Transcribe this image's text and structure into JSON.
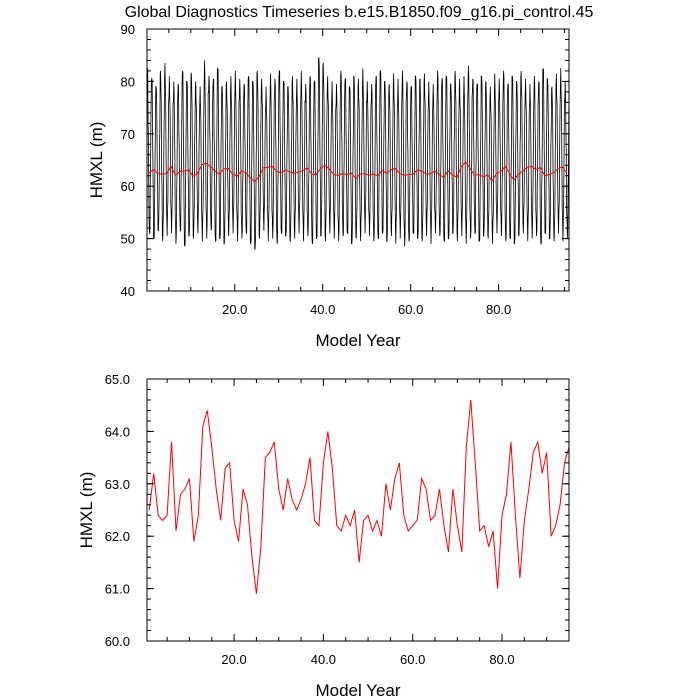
{
  "chart_data": [
    {
      "type": "line",
      "title": "Global Diagnostics Timeseries b.e15.B1850.f09_g16.pi_control.45",
      "xlabel": "Model Year",
      "ylabel": "HMXL (m)",
      "xlim": [
        0.04,
        96
      ],
      "ylim": [
        40,
        90
      ],
      "x_ticks": [
        20,
        40,
        60,
        80
      ],
      "x_tick_labels": [
        "20.0",
        "40.0",
        "60.0",
        "80.0"
      ],
      "y_ticks": [
        40,
        50,
        60,
        70,
        80,
        90
      ],
      "y_tick_labels": [
        "40",
        "50",
        "60",
        "70",
        "80",
        "90"
      ],
      "grid": false,
      "series": [
        {
          "color": "#000000",
          "style": "monthly",
          "annual_max": [
            82.5,
            80.5,
            79.0,
            82.0,
            83.5,
            81.0,
            80.0,
            79.5,
            82.0,
            80.0,
            81.5,
            80.0,
            79.0,
            84.0,
            81.0,
            80.5,
            82.5,
            79.0,
            80.0,
            81.0,
            82.0,
            80.5,
            79.5,
            81.0,
            80.0,
            82.0,
            80.5,
            79.0,
            81.5,
            80.5,
            82.0,
            80.0,
            79.0,
            81.0,
            80.5,
            82.0,
            79.5,
            81.0,
            80.0,
            84.5,
            83.5,
            81.0,
            80.0,
            79.5,
            82.0,
            80.5,
            79.0,
            81.0,
            80.5,
            82.5,
            80.0,
            79.5,
            81.0,
            82.0,
            80.0,
            79.5,
            81.5,
            80.5,
            82.0,
            80.0,
            79.0,
            81.0,
            80.5,
            81.5,
            80.0,
            79.5,
            82.0,
            80.5,
            81.0,
            79.5,
            82.0,
            80.5,
            81.0,
            83.0,
            80.5,
            79.5,
            81.0,
            80.0,
            79.0,
            81.5,
            80.5,
            82.0,
            79.5,
            81.0,
            80.0,
            82.0,
            80.5,
            79.5,
            81.0,
            80.0,
            82.5,
            80.5,
            79.0,
            81.5,
            82.5,
            80.0
          ],
          "annual_min": [
            51.0,
            50.0,
            51.5,
            49.5,
            50.5,
            51.0,
            49.0,
            51.5,
            48.5,
            50.5,
            50.0,
            51.0,
            49.5,
            50.0,
            51.5,
            49.5,
            50.0,
            49.0,
            50.5,
            51.0,
            49.5,
            50.0,
            51.0,
            49.0,
            48.0,
            50.0,
            51.5,
            49.5,
            50.0,
            49.0,
            51.0,
            50.5,
            49.5,
            50.0,
            51.0,
            49.5,
            50.5,
            49.0,
            50.0,
            50.5,
            49.5,
            51.0,
            50.0,
            49.5,
            50.5,
            51.0,
            49.0,
            50.0,
            49.5,
            51.0,
            50.5,
            49.5,
            50.0,
            51.0,
            49.5,
            50.5,
            49.0,
            50.0,
            48.5,
            49.5,
            51.0,
            50.0,
            49.5,
            50.5,
            49.0,
            51.0,
            50.5,
            49.5,
            50.0,
            51.0,
            49.5,
            50.5,
            49.0,
            50.0,
            51.0,
            49.5,
            50.5,
            50.0,
            49.0,
            51.0,
            50.5,
            49.5,
            50.0,
            49.0,
            50.5,
            51.0,
            49.5,
            50.0,
            50.5,
            49.0,
            51.0,
            50.0,
            49.5,
            51.0,
            49.5,
            50.0
          ]
        },
        {
          "color": "#ff0000",
          "style": "annual",
          "values": [
            62.5,
            63.2,
            62.4,
            62.3,
            62.4,
            63.8,
            62.1,
            62.8,
            62.9,
            63.1,
            61.9,
            62.4,
            64.1,
            64.4,
            63.7,
            62.9,
            62.3,
            63.3,
            63.4,
            62.3,
            61.9,
            62.9,
            62.6,
            61.6,
            60.9,
            61.8,
            63.5,
            63.6,
            63.8,
            62.9,
            62.5,
            63.1,
            62.7,
            62.5,
            62.7,
            63.0,
            63.5,
            62.3,
            62.2,
            63.4,
            64.0,
            63.3,
            62.2,
            62.1,
            62.4,
            62.2,
            62.5,
            61.5,
            62.3,
            62.4,
            62.1,
            62.3,
            62.0,
            63.0,
            62.5,
            63.1,
            63.4,
            62.4,
            62.1,
            62.2,
            62.3,
            63.1,
            62.9,
            62.3,
            62.4,
            62.9,
            62.2,
            61.7,
            62.9,
            62.2,
            61.7,
            63.7,
            64.6,
            63.4,
            62.1,
            62.2,
            61.8,
            62.1,
            61.0,
            62.4,
            62.8,
            63.8,
            62.4,
            61.2,
            62.3,
            62.9,
            63.6,
            63.8,
            63.2,
            63.6,
            62.0,
            62.2,
            62.6,
            63.4,
            63.7,
            62.5
          ]
        }
      ]
    },
    {
      "type": "line",
      "title": "",
      "xlabel": "Model Year",
      "ylabel": "HMXL (m)",
      "xlim": [
        0.5,
        95
      ],
      "ylim": [
        60,
        65
      ],
      "x_ticks": [
        20,
        40,
        60,
        80
      ],
      "x_tick_labels": [
        "20.0",
        "40.0",
        "60.0",
        "80.0"
      ],
      "y_ticks": [
        60,
        61,
        62,
        63,
        64,
        65
      ],
      "y_tick_labels": [
        "60.0",
        "61.0",
        "62.0",
        "63.0",
        "64.0",
        "65.0"
      ],
      "grid": false,
      "series": [
        {
          "color": "#ff0000",
          "x_start": 1,
          "values": [
            62.5,
            63.2,
            62.4,
            62.3,
            62.4,
            63.8,
            62.1,
            62.8,
            62.9,
            63.1,
            61.9,
            62.4,
            64.1,
            64.4,
            63.7,
            62.9,
            62.3,
            63.3,
            63.4,
            62.3,
            61.9,
            62.9,
            62.6,
            61.6,
            60.9,
            61.8,
            63.5,
            63.6,
            63.8,
            62.9,
            62.5,
            63.1,
            62.7,
            62.5,
            62.7,
            63.0,
            63.5,
            62.3,
            62.2,
            63.4,
            64.0,
            63.3,
            62.2,
            62.1,
            62.4,
            62.2,
            62.5,
            61.5,
            62.3,
            62.4,
            62.1,
            62.3,
            62.0,
            63.0,
            62.5,
            63.1,
            63.4,
            62.4,
            62.1,
            62.2,
            62.3,
            63.1,
            62.9,
            62.3,
            62.4,
            62.9,
            62.2,
            61.7,
            62.9,
            62.2,
            61.7,
            63.7,
            64.6,
            63.4,
            62.1,
            62.2,
            61.8,
            62.1,
            61.0,
            62.4,
            62.8,
            63.8,
            62.4,
            61.2,
            62.3,
            62.9,
            63.6,
            63.8,
            63.2,
            63.6,
            62.0,
            62.2,
            62.6,
            63.4,
            63.7
          ]
        }
      ]
    }
  ]
}
